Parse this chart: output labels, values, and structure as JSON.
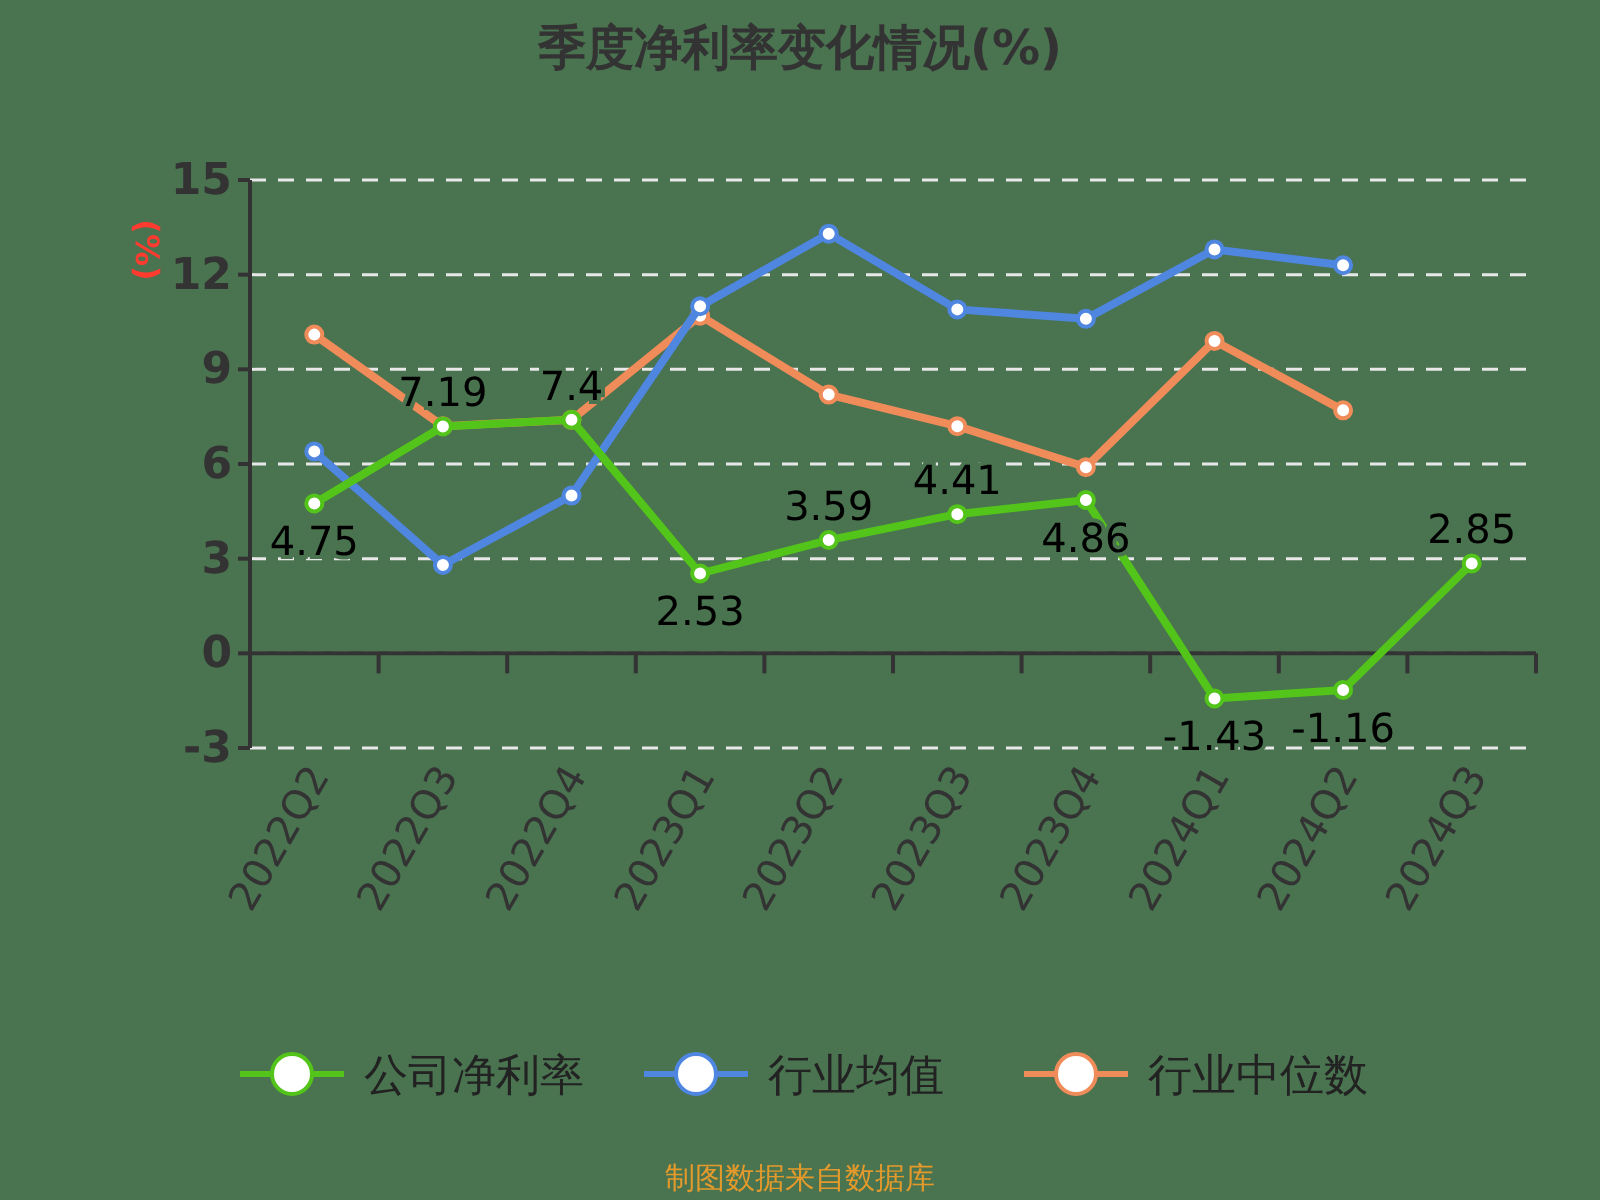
{
  "chart_data": {
    "type": "line",
    "title": "季度净利率变化情况(%)",
    "ylabel": "(%)",
    "categories": [
      "2022Q2",
      "2022Q3",
      "2022Q4",
      "2023Q1",
      "2023Q2",
      "2023Q3",
      "2023Q4",
      "2024Q1",
      "2024Q2",
      "2024Q3"
    ],
    "series": [
      {
        "name": "公司净利率",
        "color": "#52c41a",
        "values": [
          4.75,
          7.19,
          7.4,
          2.53,
          3.59,
          4.41,
          4.86,
          -1.43,
          -1.16,
          2.85
        ],
        "value_labels": [
          "4.75",
          "7.19",
          "7.4",
          "2.53",
          "3.59",
          "4.41",
          "4.86",
          "-1.43",
          "-1.16",
          "2.85"
        ]
      },
      {
        "name": "行业均值",
        "color": "#4e86e0",
        "values": [
          6.4,
          2.8,
          5.0,
          11.0,
          13.3,
          10.9,
          10.6,
          12.8,
          12.3,
          null
        ]
      },
      {
        "name": "行业中位数",
        "color": "#f08c5a",
        "values": [
          10.1,
          7.2,
          7.4,
          10.7,
          8.2,
          7.2,
          5.9,
          9.9,
          7.7,
          null
        ]
      }
    ],
    "ylim": [
      -3,
      15
    ],
    "yticks": [
      -3,
      0,
      3,
      6,
      9,
      12,
      15
    ],
    "grid": "y",
    "legend": "bottom",
    "marker": "circle",
    "line_style": "solid",
    "annotations": [
      "制图数据来自数据库"
    ]
  }
}
